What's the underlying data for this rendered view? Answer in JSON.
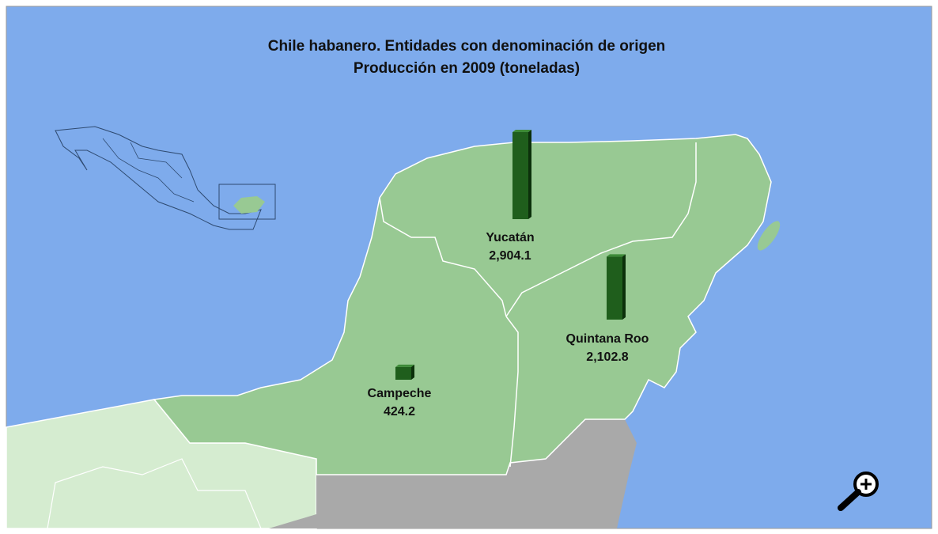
{
  "title": "Chile habanero. Entidades con denominación de origen",
  "subtitle": "Producción en 2009 (toneladas)",
  "regions": {
    "names": [
      "Yucatán",
      "Quintana Roo",
      "Campeche"
    ],
    "values": [
      2904.1,
      2102.8,
      424.2
    ],
    "value_labels": [
      "2,904.1",
      "2,102.8",
      "424.2"
    ],
    "color": "#1f5e1c"
  }
}
